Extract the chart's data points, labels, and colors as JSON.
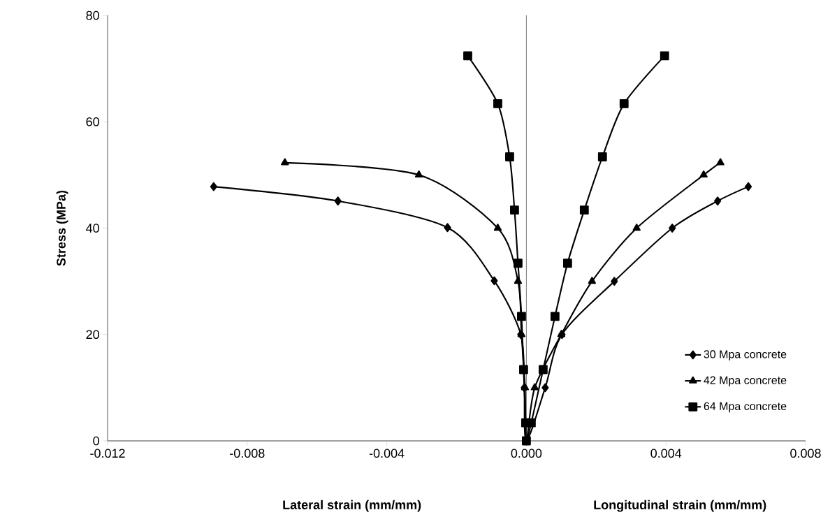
{
  "chart_data": {
    "type": "line",
    "ylabel": "Stress  (MPa)",
    "xlabel": "Lateral strain (mm/mm)",
    "annotations": [
      "Longitudinal strain (mm/mm)"
    ],
    "xlim": [
      -0.012,
      0.008
    ],
    "ylim": [
      0,
      80
    ],
    "xticks": [
      {
        "value": -0.012,
        "label": "-0.012"
      },
      {
        "value": -0.008,
        "label": "-0.008"
      },
      {
        "value": -0.004,
        "label": "-0.004"
      },
      {
        "value": 0,
        "label": "0.000"
      },
      {
        "value": 0.004,
        "label": "0.004"
      },
      {
        "value": 0.008,
        "label": "0.008"
      }
    ],
    "yticks": [
      0,
      20,
      40,
      60,
      80
    ],
    "ref_lines": [
      {
        "axis": "x",
        "value": 0,
        "color": "#808080"
      }
    ],
    "legend": "bottom right",
    "grid": false,
    "series": [
      {
        "name": "30 Mpa concrete",
        "color": "#000000",
        "marker": "diamond",
        "x": [
          -0.00896,
          -0.0054,
          -0.00226,
          -0.00092,
          -0.00016,
          -6e-05,
          0,
          0.00054,
          0.00102,
          0.00252,
          0.00418,
          0.00548,
          0.00636
        ],
        "values": [
          47.8,
          45.1,
          40.1,
          30.1,
          20,
          10,
          0,
          10,
          20,
          30,
          40,
          45.1,
          47.8
        ]
      },
      {
        "name": "42 Mpa concrete",
        "color": "#000000",
        "marker": "triangle",
        "x": [
          -0.00692,
          -0.00308,
          -0.00082,
          -0.00024,
          -0.00014,
          -4e-05,
          0,
          0.00024,
          0.001,
          0.00188,
          0.00316,
          0.00508,
          0.00556
        ],
        "values": [
          52.3,
          50,
          40,
          30,
          20,
          10,
          0,
          10,
          20,
          30,
          40,
          50,
          52.3
        ]
      },
      {
        "name": "64 Mpa concrete",
        "color": "#000000",
        "marker": "square",
        "x": [
          -0.00168,
          -0.00082,
          -0.00048,
          -0.00034,
          -0.00024,
          -0.00014,
          -8e-05,
          -2e-05,
          0,
          0.00014,
          0.00048,
          0.00082,
          0.00118,
          0.00166,
          0.00218,
          0.0028,
          0.00396
        ],
        "values": [
          72.4,
          63.4,
          53.4,
          43.4,
          33.4,
          23.4,
          13.4,
          3.4,
          0,
          3.4,
          13.4,
          23.4,
          33.4,
          43.4,
          53.4,
          63.4,
          72.4
        ]
      }
    ]
  }
}
